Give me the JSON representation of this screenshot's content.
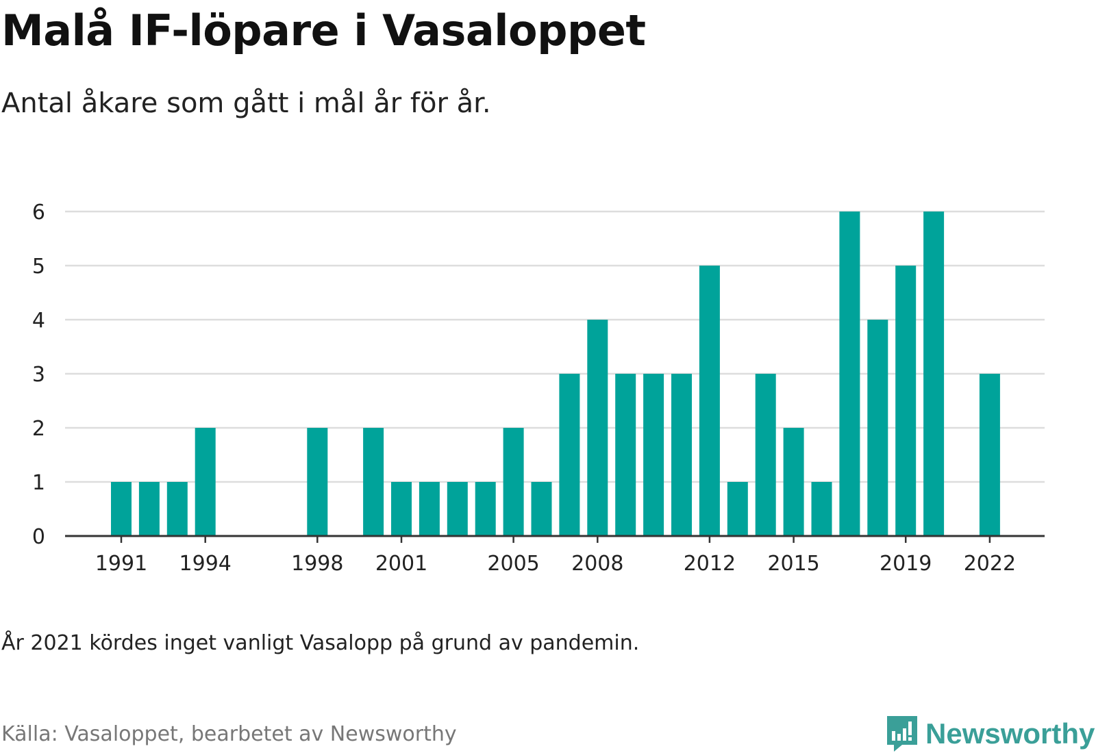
{
  "title": "Malå IF-löpare i Vasaloppet",
  "subtitle": "Antal åkare som gått i mål år för år.",
  "note": "År 2021 kördes inget vanligt Vasalopp på grund av pandemin.",
  "source": "Källa: Vasaloppet, bearbetet av Newsworthy",
  "logo_text": "Newsworthy",
  "colors": {
    "bar": "#00a39a",
    "grid": "#dddddd",
    "axis": "#333333",
    "logo": "#3a9f98"
  },
  "chart_data": {
    "type": "bar",
    "title": "Malå IF-löpare i Vasaloppet",
    "xlabel": "",
    "ylabel": "",
    "categories": [
      1991,
      1992,
      1993,
      1994,
      1995,
      1996,
      1997,
      1998,
      1999,
      2000,
      2001,
      2002,
      2003,
      2004,
      2005,
      2006,
      2007,
      2008,
      2009,
      2010,
      2011,
      2012,
      2013,
      2014,
      2015,
      2016,
      2017,
      2018,
      2019,
      2020,
      2021,
      2022
    ],
    "values": [
      1,
      1,
      1,
      2,
      0,
      0,
      0,
      2,
      0,
      2,
      1,
      1,
      1,
      1,
      2,
      1,
      3,
      4,
      3,
      3,
      3,
      5,
      1,
      3,
      2,
      1,
      6,
      4,
      5,
      6,
      0,
      3
    ],
    "xticks": [
      "1991",
      "1994",
      "1998",
      "2001",
      "2005",
      "2008",
      "2012",
      "2015",
      "2019",
      "2022"
    ],
    "yticks": [
      0,
      1,
      2,
      3,
      4,
      5,
      6
    ],
    "ylim": [
      0,
      6
    ],
    "grid": true,
    "legend": "none"
  }
}
